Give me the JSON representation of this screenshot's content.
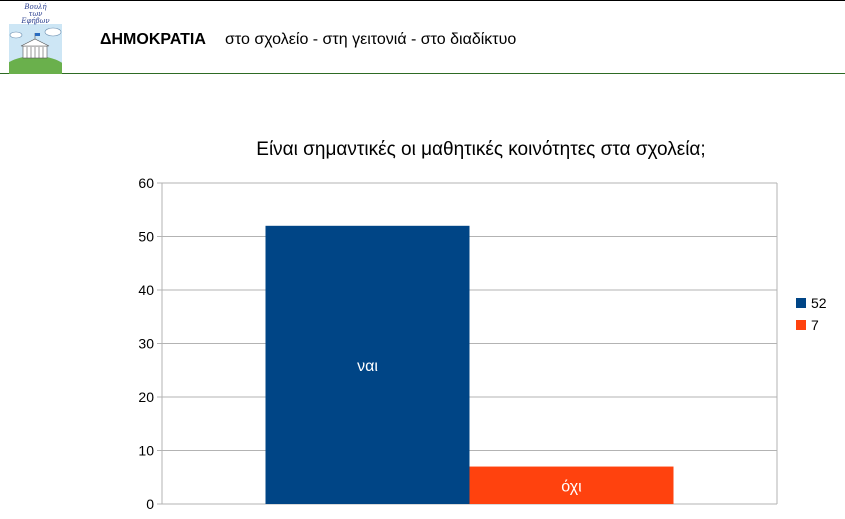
{
  "header": {
    "logo_text": "Βουλή\nτων\nΕφήβων",
    "title": "ΔΗΜΟΚΡΑΤΙΑ",
    "subtitle": "στο σχολείο - στη γειτονιά - στο διαδίκτυο"
  },
  "chart_data": {
    "type": "bar",
    "title": "Είναι σημαντικές οι μαθητικές κοινότητες στα σχολεία;",
    "xlabel": "",
    "ylabel": "",
    "ylim": [
      0,
      60
    ],
    "yticks": [
      0,
      10,
      20,
      30,
      40,
      50,
      60
    ],
    "grid": true,
    "legend_position": "right",
    "categories": [
      "ναι",
      "όχι"
    ],
    "values": [
      52,
      7
    ],
    "legend": [
      "52",
      "7"
    ],
    "colors": [
      "#004586",
      "#ff420e"
    ]
  }
}
